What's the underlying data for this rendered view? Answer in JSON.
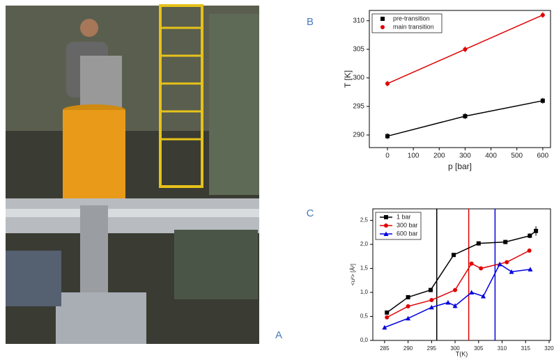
{
  "photo_label": "A",
  "chart_data": [
    {
      "type": "line",
      "panel": "B",
      "xlabel": "p [bar]",
      "ylabel": "T [K]",
      "xlim": [
        -70,
        630
      ],
      "xticks": [
        0,
        100,
        200,
        300,
        400,
        500,
        600
      ],
      "ylim": [
        287.8,
        311.8
      ],
      "yticks": [
        290,
        295,
        300,
        305,
        310
      ],
      "legend": "top-left",
      "series": [
        {
          "name": "pre-transition",
          "color": "#000000",
          "marker": "square",
          "x": [
            0,
            300,
            600
          ],
          "values": [
            289.8,
            293.3,
            296.0
          ],
          "errors": [
            0.5,
            0.5,
            0.5
          ]
        },
        {
          "name": "main transition",
          "color": "#e00000",
          "marker": "circle",
          "x": [
            0,
            300,
            600
          ],
          "values": [
            299.0,
            305.0,
            311.0
          ],
          "errors": [
            0.5,
            0.5,
            0.5
          ]
        }
      ]
    },
    {
      "type": "line",
      "panel": "C",
      "xlabel": "T(K)",
      "ylabel": "<u²> [Å²]",
      "xlim": [
        282.5,
        320.3
      ],
      "xticks": [
        285,
        290,
        295,
        300,
        305,
        310,
        315,
        320
      ],
      "ylim": [
        0,
        2.74
      ],
      "yticks": [
        {
          "value": 0,
          "label": "0,0"
        },
        {
          "value": 0.5,
          "label": "0,5"
        },
        {
          "value": 1,
          "label": "1,0"
        },
        {
          "value": 1.5,
          "label": "1,5"
        },
        {
          "value": 2,
          "label": "2,0"
        },
        {
          "value": 2.5,
          "label": "2,5"
        }
      ],
      "legend": "top-left",
      "vlines": [
        {
          "x": 296.1,
          "color": "#000000"
        },
        {
          "x": 302.9,
          "color": "#e00000"
        },
        {
          "x": 308.5,
          "color": "#0000e0"
        }
      ],
      "series": [
        {
          "name": "1 bar",
          "color": "#000000",
          "marker": "square",
          "x": [
            285.5,
            290,
            294.8,
            299.7,
            305,
            310.7,
            315.9,
            317.2
          ],
          "values": [
            0.58,
            0.9,
            1.05,
            1.78,
            2.02,
            2.05,
            2.18,
            2.28
          ],
          "errors": [
            0.02,
            0.02,
            0.02,
            0.04,
            0.03,
            0.03,
            0.05,
            0.1
          ]
        },
        {
          "name": "300 bar",
          "color": "#e00000",
          "marker": "circle",
          "x": [
            285.5,
            290,
            295,
            300,
            303.5,
            305.5,
            311,
            315.8
          ],
          "values": [
            0.48,
            0.71,
            0.84,
            1.05,
            1.6,
            1.5,
            1.63,
            1.87
          ],
          "errors": [
            0.02,
            0.02,
            0.02,
            0.03,
            0.03,
            0.03,
            0.03,
            0.04
          ]
        },
        {
          "name": "600 bar",
          "color": "#0000e0",
          "marker": "triangle",
          "x": [
            285,
            290,
            295,
            298.5,
            300,
            303.5,
            306,
            309.5,
            312,
            316
          ],
          "values": [
            0.27,
            0.46,
            0.69,
            0.79,
            0.72,
            1.0,
            0.92,
            1.59,
            1.43,
            1.48
          ],
          "errors": [
            0.02,
            0.02,
            0.03,
            0.04,
            0.05,
            0.03,
            0.03,
            0.03,
            0.03,
            0.04
          ]
        }
      ]
    }
  ]
}
